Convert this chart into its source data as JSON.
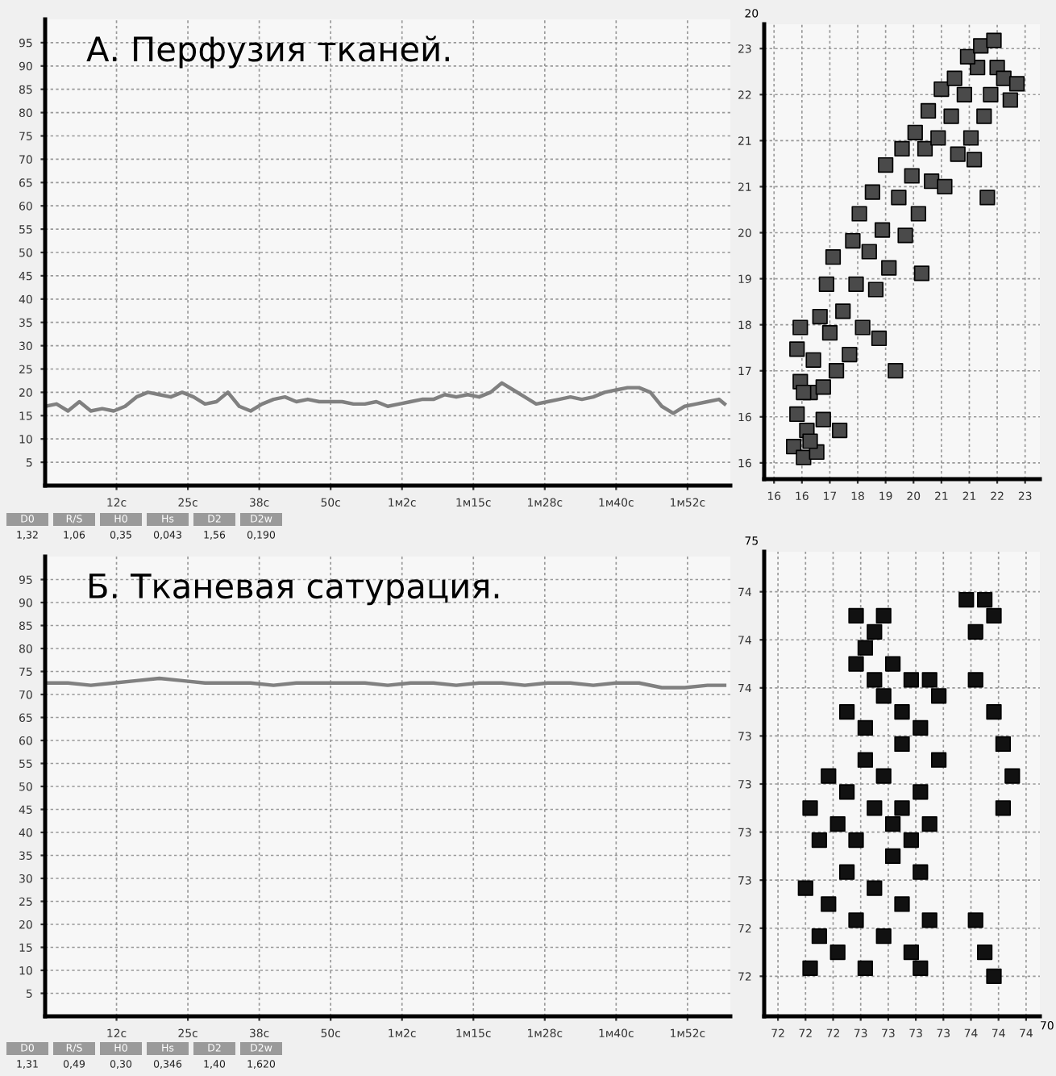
{
  "chart_data": [
    {
      "type": "line",
      "title": "А. Перфузия тканей.",
      "color": "#808080",
      "line_style": "solid",
      "grid": true,
      "x": [
        0,
        2,
        4,
        6,
        8,
        10,
        12,
        14,
        16,
        18,
        20,
        22,
        24,
        26,
        28,
        30,
        32,
        34,
        36,
        38,
        40,
        42,
        44,
        46,
        48,
        50,
        52,
        54,
        56,
        58,
        60,
        62,
        64,
        66,
        68,
        70,
        72,
        74,
        76,
        78,
        80,
        82,
        84,
        86,
        88,
        90,
        92,
        94,
        96,
        98,
        100,
        102,
        104,
        106,
        108,
        110,
        112,
        114,
        116,
        118,
        119
      ],
      "values": [
        17,
        17.5,
        16,
        18,
        16,
        16.5,
        16,
        17,
        19,
        20,
        19.5,
        19,
        20,
        19,
        17.5,
        18,
        20,
        17,
        16,
        17.5,
        18.5,
        19,
        18,
        18.5,
        18,
        18,
        18,
        17.5,
        17.5,
        18,
        17,
        17.5,
        18,
        18.5,
        18.5,
        19.5,
        19,
        19.5,
        19,
        20,
        22,
        20.5,
        19,
        17.5,
        18,
        18.5,
        19,
        18.5,
        19,
        20,
        20.5,
        21,
        21,
        20,
        17,
        15.5,
        17,
        17.5,
        18,
        18.5,
        17.5
      ],
      "xlim": [
        0,
        120
      ],
      "xticks": [
        {
          "value": 12.5,
          "label": "12с"
        },
        {
          "value": 25,
          "label": "25с"
        },
        {
          "value": 37.5,
          "label": "38с"
        },
        {
          "value": 50,
          "label": "50с"
        },
        {
          "value": 62.5,
          "label": "1м2с"
        },
        {
          "value": 75,
          "label": "1м15с"
        },
        {
          "value": 87.5,
          "label": "1м28с"
        },
        {
          "value": 100,
          "label": "1м40с"
        },
        {
          "value": 112.5,
          "label": "1м52с"
        }
      ],
      "ylim": [
        0,
        100
      ],
      "yticks": [
        5,
        10,
        15,
        20,
        25,
        30,
        35,
        40,
        45,
        50,
        55,
        60,
        65,
        70,
        75,
        80,
        85,
        90,
        95
      ],
      "annotations": [
        "D0",
        "R/S",
        "H0",
        "Hs",
        "D2",
        "D2w",
        "1,32",
        "1,06",
        "0,35",
        "0,043",
        "1,56",
        "0,190"
      ]
    },
    {
      "type": "scatter",
      "color": "#4a4a4a",
      "marker": "square",
      "grid": true,
      "x": [
        16.1,
        16.2,
        16.3,
        16.4,
        16.5,
        16.2,
        16.6,
        16.8,
        16.3,
        16.7,
        17.0,
        16.9,
        16.4,
        17.2,
        17.4,
        17.1,
        17.6,
        17.8,
        17.3,
        18.0,
        18.2,
        17.9,
        18.4,
        18.6,
        18.1,
        18.8,
        19.0,
        18.5,
        19.3,
        19.5,
        18.9,
        19.7,
        19.9,
        19.4,
        20.1,
        20.3,
        19.8,
        20.5,
        20.7,
        20.2,
        20.9,
        21.1,
        20.6,
        21.3,
        21.5,
        21.0,
        21.7,
        21.9,
        21.4,
        22.1,
        22.3,
        21.8,
        22.5,
        22.7,
        22.2,
        22.9,
        21.6,
        22.0,
        19.2,
        17.5,
        18.7,
        20.0,
        17.0,
        16.6
      ],
      "values": [
        15.8,
        16.4,
        17.0,
        15.6,
        16.1,
        17.6,
        16.8,
        15.7,
        18.0,
        17.4,
        16.3,
        18.2,
        16.8,
        17.9,
        17.2,
        18.8,
        18.3,
        17.5,
        19.3,
        18.8,
        18.0,
        19.6,
        19.4,
        18.7,
        20.1,
        19.8,
        19.1,
        20.5,
        20.4,
        19.7,
        21.0,
        20.8,
        20.1,
        21.3,
        21.3,
        20.7,
        21.6,
        21.5,
        20.6,
        22.0,
        21.9,
        21.2,
        22.4,
        22.3,
        21.5,
        22.6,
        22.8,
        21.9,
        23.0,
        22.3,
        22.8,
        23.2,
        22.6,
        22.2,
        23.3,
        22.5,
        21.1,
        20.4,
        17.2,
        16.1,
        17.8,
        19.0,
        16.9,
        15.9
      ],
      "xlim": [
        15.2,
        23.6
      ],
      "xticks": [
        {
          "value": 15.5,
          "label": "16"
        },
        {
          "value": 16.35,
          "label": "16"
        },
        {
          "value": 17.2,
          "label": "17"
        },
        {
          "value": 18.05,
          "label": "18"
        },
        {
          "value": 18.9,
          "label": "19"
        },
        {
          "value": 19.75,
          "label": "20"
        },
        {
          "value": 20.6,
          "label": "21"
        },
        {
          "value": 21.45,
          "label": "21"
        },
        {
          "value": 22.3,
          "label": "22"
        },
        {
          "value": 23.15,
          "label": "23"
        }
      ],
      "ylim": [
        15.2,
        23.6
      ],
      "yticks": [
        {
          "value": 15.5,
          "label": "16"
        },
        {
          "value": 16.35,
          "label": "16"
        },
        {
          "value": 17.2,
          "label": "17"
        },
        {
          "value": 18.05,
          "label": "18"
        },
        {
          "value": 18.9,
          "label": "19"
        },
        {
          "value": 19.75,
          "label": "20"
        },
        {
          "value": 20.6,
          "label": "21"
        },
        {
          "value": 21.45,
          "label": "21"
        },
        {
          "value": 22.3,
          "label": "22"
        },
        {
          "value": 23.15,
          "label": "23"
        }
      ],
      "annotations": [
        "20"
      ]
    },
    {
      "type": "line",
      "title": "Б. Тканевая сатурация.",
      "color": "#808080",
      "line_style": "solid",
      "grid": true,
      "x": [
        0,
        4,
        8,
        12,
        16,
        20,
        24,
        28,
        32,
        36,
        40,
        44,
        48,
        52,
        56,
        60,
        64,
        68,
        72,
        76,
        80,
        84,
        88,
        92,
        96,
        100,
        104,
        108,
        112,
        116,
        119
      ],
      "values": [
        72.5,
        72.5,
        72,
        72.5,
        73,
        73.5,
        73,
        72.5,
        72.5,
        72.5,
        72,
        72.5,
        72.5,
        72.5,
        72.5,
        72,
        72.5,
        72.5,
        72,
        72.5,
        72.5,
        72,
        72.5,
        72.5,
        72,
        72.5,
        72.5,
        71.5,
        71.5,
        72,
        72
      ],
      "xlim": [
        0,
        120
      ],
      "xticks": [
        {
          "value": 12.5,
          "label": "12с"
        },
        {
          "value": 25,
          "label": "25с"
        },
        {
          "value": 37.5,
          "label": "38с"
        },
        {
          "value": 50,
          "label": "50с"
        },
        {
          "value": 62.5,
          "label": "1м2с"
        },
        {
          "value": 75,
          "label": "1м15с"
        },
        {
          "value": 87.5,
          "label": "1м28с"
        },
        {
          "value": 100,
          "label": "1м40с"
        },
        {
          "value": 112.5,
          "label": "1м52с"
        }
      ],
      "ylim": [
        0,
        100
      ],
      "yticks": [
        5,
        10,
        15,
        20,
        25,
        30,
        35,
        40,
        45,
        50,
        55,
        60,
        65,
        70,
        75,
        80,
        85,
        90,
        95
      ],
      "annotations": [
        "D0",
        "R/S",
        "H0",
        "Hs",
        "D2",
        "D2w",
        "1,31",
        "0,49",
        "0,30",
        "0,346",
        "1,40",
        "1,620"
      ]
    },
    {
      "type": "scatter",
      "color": "#111111",
      "marker": "square",
      "grid": true,
      "x": [
        72.0,
        72.1,
        72.2,
        72.3,
        72.4,
        72.5,
        72.6,
        72.7,
        72.8,
        72.9,
        73.0,
        73.1,
        73.2,
        73.3,
        72.1,
        72.3,
        72.5,
        72.7,
        72.9,
        73.1,
        73.3,
        72.2,
        72.4,
        72.6,
        72.8,
        73.0,
        73.2,
        73.4,
        72.4,
        72.6,
        72.8,
        73.0,
        73.2,
        73.4,
        72.5,
        72.7,
        72.9,
        73.1,
        73.3,
        72.5,
        72.6,
        72.7,
        72.8,
        73.7,
        73.8,
        73.9,
        74.0,
        73.8,
        74.0,
        74.1,
        74.2,
        74.1,
        73.8,
        73.9,
        74.0,
        71.95,
        72.0,
        73.0,
        73.2
      ],
      "values": [
        72.0,
        72.2,
        72.4,
        72.1,
        72.6,
        72.3,
        72.0,
        72.5,
        72.2,
        72.7,
        72.4,
        72.1,
        72.6,
        72.3,
        72.8,
        72.9,
        72.8,
        73.0,
        72.9,
        72.8,
        72.9,
        73.2,
        73.1,
        73.3,
        73.2,
        73.4,
        73.1,
        73.3,
        73.6,
        73.5,
        73.7,
        73.6,
        73.5,
        73.7,
        73.9,
        73.8,
        73.9,
        73.8,
        73.8,
        74.2,
        74.0,
        74.1,
        74.2,
        74.3,
        74.1,
        74.3,
        74.2,
        73.8,
        73.6,
        73.4,
        73.2,
        73.0,
        72.3,
        72.1,
        71.95,
        72.5,
        73.0,
        73.0,
        72.0
      ],
      "xlim": [
        71.5,
        74.5
      ],
      "xticks": [
        {
          "value": 71.65,
          "label": "72"
        },
        {
          "value": 71.95,
          "label": "72"
        },
        {
          "value": 72.25,
          "label": "72"
        },
        {
          "value": 72.55,
          "label": "73"
        },
        {
          "value": 72.85,
          "label": "73"
        },
        {
          "value": 73.15,
          "label": "73"
        },
        {
          "value": 73.45,
          "label": "73"
        },
        {
          "value": 73.75,
          "label": "74"
        },
        {
          "value": 74.05,
          "label": "74"
        },
        {
          "value": 74.35,
          "label": "74"
        }
      ],
      "ylim": [
        71.7,
        74.6
      ],
      "yticks": [
        {
          "value": 71.95,
          "label": "72"
        },
        {
          "value": 72.25,
          "label": "72"
        },
        {
          "value": 72.55,
          "label": "73"
        },
        {
          "value": 72.85,
          "label": "73"
        },
        {
          "value": 73.15,
          "label": "73"
        },
        {
          "value": 73.45,
          "label": "73"
        },
        {
          "value": 73.75,
          "label": "74"
        },
        {
          "value": 74.05,
          "label": "74"
        },
        {
          "value": 74.35,
          "label": "74"
        }
      ],
      "annotations": [
        "75",
        "70"
      ]
    }
  ]
}
